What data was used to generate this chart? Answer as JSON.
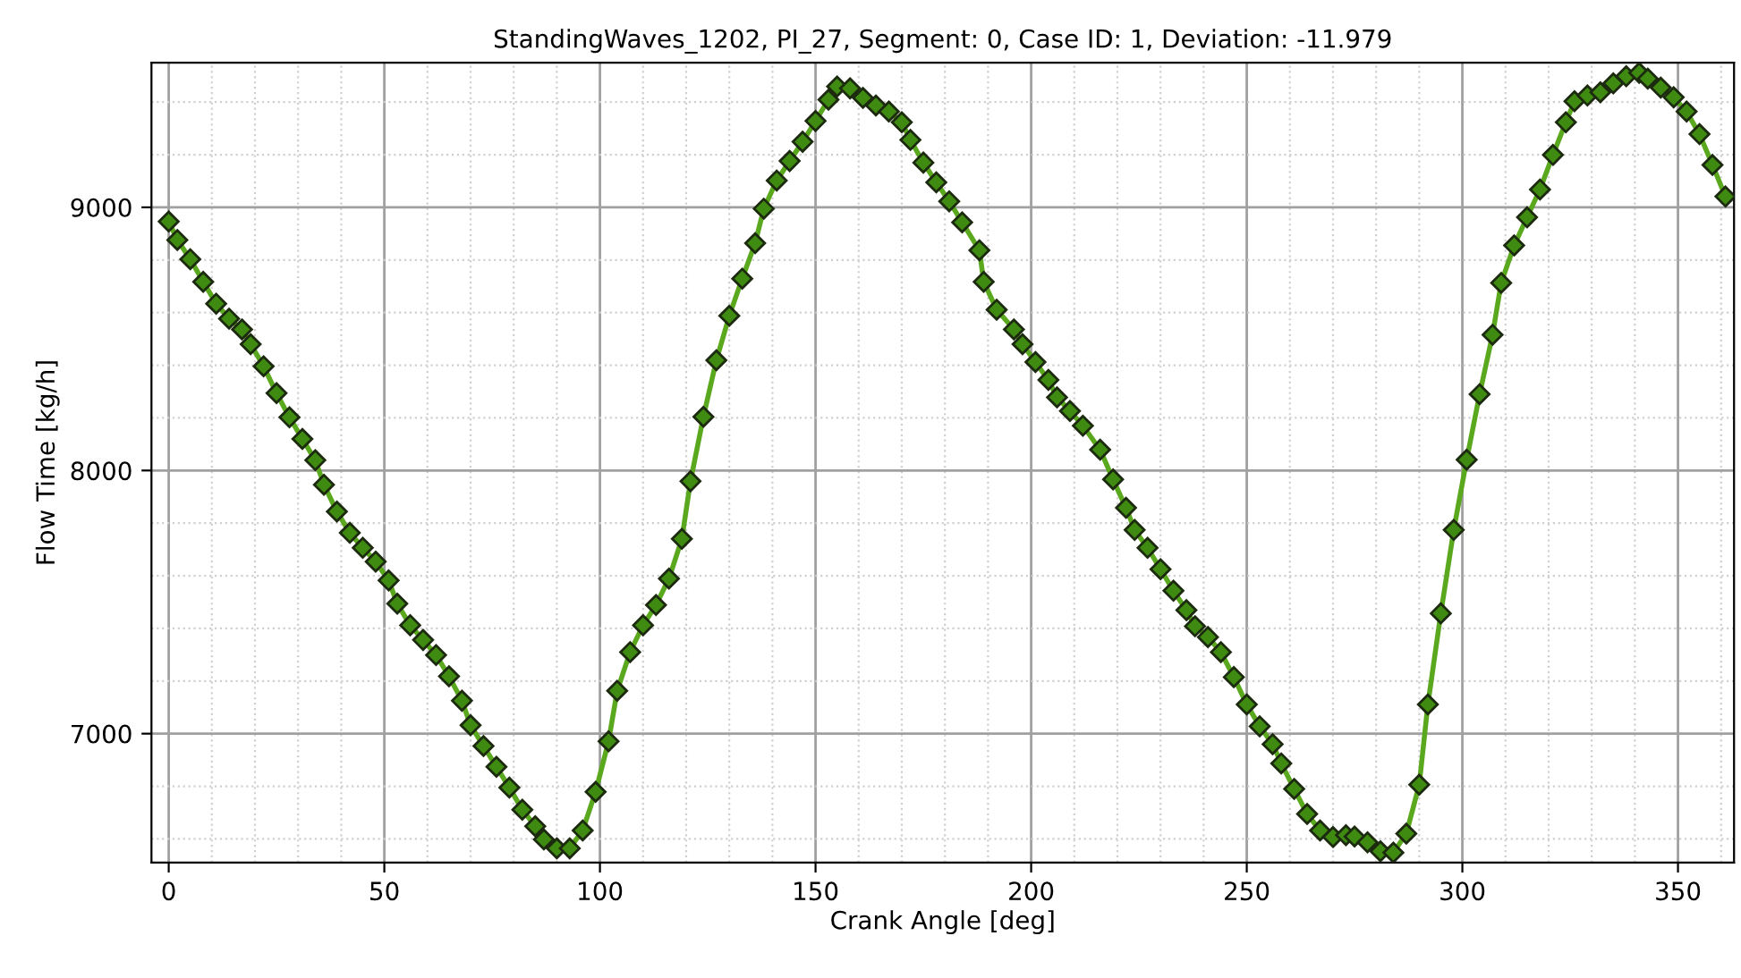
{
  "chart_data": {
    "type": "line",
    "title": "StandingWaves_1202, PI_27, Segment: 0, Case ID: 1, Deviation: -11.979",
    "xlabel": "Crank Angle [deg]",
    "ylabel": "Flow Time [kg/h]",
    "xlim": [
      -4,
      363
    ],
    "ylim": [
      6510,
      9550
    ],
    "xticks": [
      0,
      50,
      100,
      150,
      200,
      250,
      300,
      350
    ],
    "yticks": [
      7000,
      8000,
      9000
    ],
    "grid": true,
    "legend": false,
    "marker": "diamond",
    "line_style": "solid",
    "series": [
      {
        "color": "#5aa81e",
        "x": [
          0,
          2,
          5,
          8,
          11,
          14,
          17,
          19,
          22,
          25,
          28,
          31,
          34,
          36,
          39,
          42,
          45,
          48,
          51,
          53,
          56,
          59,
          62,
          65,
          68,
          70,
          73,
          76,
          79,
          82,
          85,
          87,
          90,
          93,
          96,
          99,
          102,
          104,
          107,
          110,
          113,
          116,
          119,
          121,
          124,
          127,
          130,
          133,
          136,
          138,
          141,
          144,
          147,
          150,
          153,
          155,
          158,
          161,
          164,
          167,
          170,
          172,
          175,
          178,
          181,
          184,
          188,
          189,
          192,
          196,
          198,
          201,
          204,
          206,
          209,
          212,
          216,
          219,
          222,
          224,
          227,
          230,
          233,
          236,
          238,
          241,
          244,
          247,
          250,
          253,
          256,
          258,
          261,
          264,
          267,
          270,
          273,
          275,
          278,
          281,
          284,
          287,
          290,
          292,
          295,
          298,
          301,
          304,
          307,
          309,
          312,
          315,
          318,
          321,
          324,
          326,
          329,
          332,
          335,
          338,
          341,
          343,
          346,
          349,
          352,
          355,
          358,
          361
        ],
        "values": [
          8946,
          8876,
          8803,
          8717,
          8634,
          8577,
          8536,
          8480,
          8396,
          8294,
          8202,
          8120,
          8039,
          7946,
          7844,
          7763,
          7706,
          7654,
          7582,
          7494,
          7412,
          7356,
          7299,
          7218,
          7125,
          7032,
          6953,
          6874,
          6795,
          6711,
          6648,
          6598,
          6564,
          6564,
          6632,
          6779,
          6971,
          7163,
          7310,
          7412,
          7489,
          7589,
          7740,
          7959,
          8204,
          8419,
          8588,
          8729,
          8864,
          8995,
          9102,
          9176,
          9249,
          9328,
          9409,
          9459,
          9452,
          9416,
          9387,
          9364,
          9323,
          9256,
          9170,
          9095,
          9023,
          8943,
          8837,
          8717,
          8611,
          8536,
          8480,
          8412,
          8344,
          8278,
          8226,
          8170,
          8079,
          7966,
          7858,
          7774,
          7706,
          7625,
          7543,
          7469,
          7408,
          7367,
          7310,
          7215,
          7111,
          7028,
          6960,
          6887,
          6790,
          6695,
          6632,
          6607,
          6614,
          6609,
          6587,
          6553,
          6548,
          6620,
          6806,
          7111,
          7457,
          7774,
          8041,
          8290,
          8516,
          8713,
          8855,
          8962,
          9068,
          9199,
          9323,
          9403,
          9425,
          9437,
          9471,
          9498,
          9511,
          9489,
          9455,
          9418,
          9364,
          9278,
          9161,
          9041
        ]
      }
    ]
  }
}
